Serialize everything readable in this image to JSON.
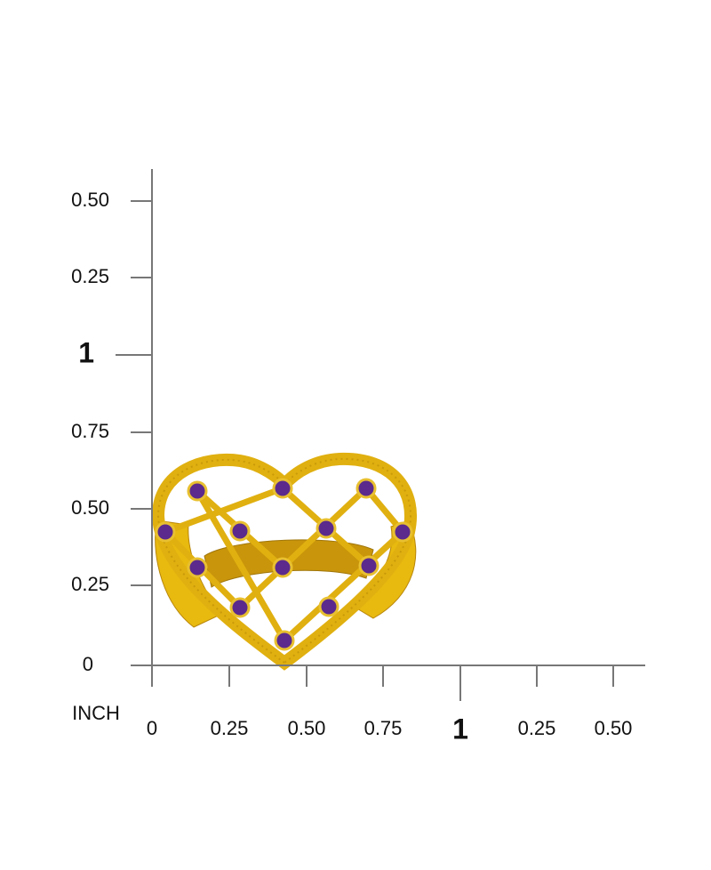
{
  "ruler": {
    "unit": "INCH",
    "y_labels": [
      "0.50",
      "0.25",
      "1",
      "0.75",
      "0.50",
      "0.25",
      "0"
    ],
    "x_labels": [
      "0",
      "0.25",
      "0.50",
      "0.75",
      "1",
      "0.25",
      "0.50"
    ]
  }
}
